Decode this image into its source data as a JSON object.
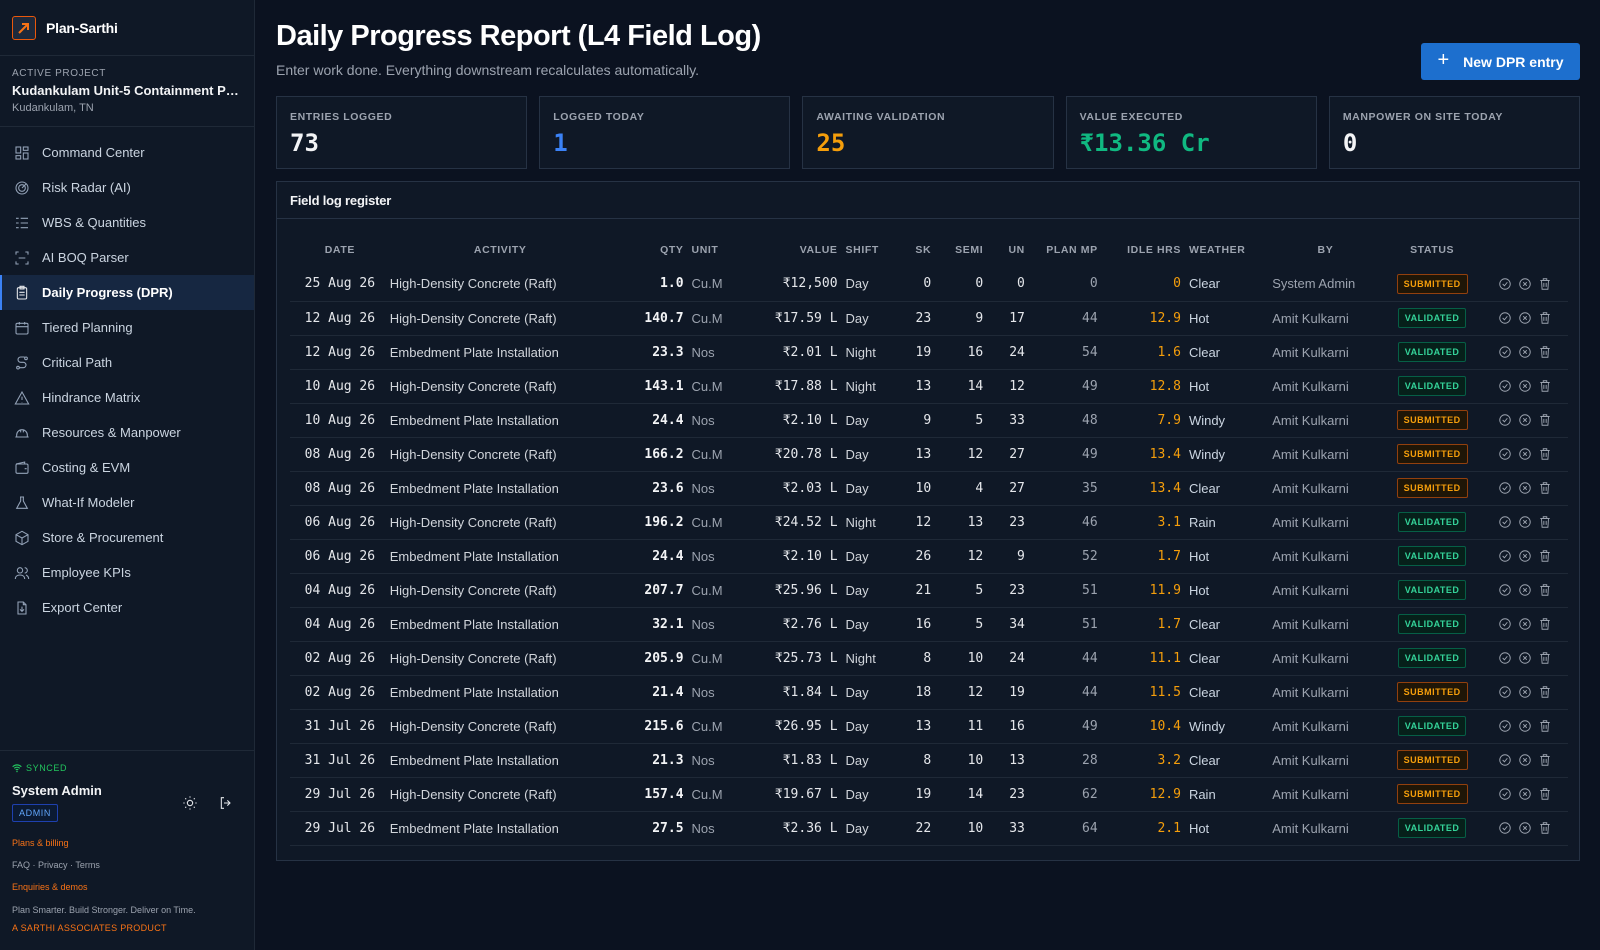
{
  "brand": {
    "name": "Plan-Sarthi"
  },
  "project": {
    "label": "ACTIVE PROJECT",
    "name": "Kudankulam Unit-5 Containment Pa...",
    "location": "Kudankulam, TN"
  },
  "nav": [
    {
      "label": "Command Center",
      "icon": "grid-icon"
    },
    {
      "label": "Risk Radar (AI)",
      "icon": "radar-icon"
    },
    {
      "label": "WBS & Quantities",
      "icon": "list-tree-icon"
    },
    {
      "label": "AI BOQ Parser",
      "icon": "scan-icon"
    },
    {
      "label": "Daily Progress (DPR)",
      "icon": "clipboard-icon",
      "active": true
    },
    {
      "label": "Tiered Planning",
      "icon": "calendar-icon"
    },
    {
      "label": "Critical Path",
      "icon": "route-icon"
    },
    {
      "label": "Hindrance Matrix",
      "icon": "warning-icon"
    },
    {
      "label": "Resources & Manpower",
      "icon": "hardhat-icon"
    },
    {
      "label": "Costing & EVM",
      "icon": "wallet-icon"
    },
    {
      "label": "What-If Modeler",
      "icon": "flask-icon"
    },
    {
      "label": "Store & Procurement",
      "icon": "package-icon"
    },
    {
      "label": "Employee KPIs",
      "icon": "users-icon"
    },
    {
      "label": "Export Center",
      "icon": "file-export-icon"
    }
  ],
  "footer": {
    "synced": "SYNCED",
    "user": "System Admin",
    "role": "ADMIN",
    "plans_link": "Plans & billing",
    "faq_links": "FAQ · Privacy · Terms",
    "enquiries_link": "Enquiries & demos",
    "tagline": "Plan Smarter. Build Stronger. Deliver on Time.",
    "product": "A SARTHI ASSOCIATES PRODUCT"
  },
  "header": {
    "title": "Daily Progress Report (L4 Field Log)",
    "subtitle": "Enter work done. Everything downstream recalculates automatically.",
    "new_button": "New DPR entry"
  },
  "stats": [
    {
      "label": "ENTRIES LOGGED",
      "value": "73",
      "color": "#f3f4f6"
    },
    {
      "label": "LOGGED TODAY",
      "value": "1",
      "color": "#3b82f6"
    },
    {
      "label": "AWAITING VALIDATION",
      "value": "25",
      "color": "#f59e0b"
    },
    {
      "label": "VALUE EXECUTED",
      "value": "₹13.36 Cr",
      "color": "#10b981"
    },
    {
      "label": "MANPOWER ON SITE TODAY",
      "value": "0",
      "color": "#f3f4f6"
    }
  ],
  "register": {
    "title": "Field log register",
    "columns": [
      "DATE",
      "ACTIVITY",
      "QTY",
      "UNIT",
      "VALUE",
      "SHIFT",
      "SK",
      "SEMI",
      "UN",
      "PLAN MP",
      "IDLE HRS",
      "WEATHER",
      "BY",
      "STATUS"
    ],
    "rows": [
      {
        "date": "25 Aug 26",
        "activity": "High-Density Concrete (Raft)",
        "qty": "1.0",
        "unit": "Cu.M",
        "value": "₹12,500",
        "shift": "Day",
        "sk": "0",
        "semi": "0",
        "un": "0",
        "plan": "0",
        "idle": "0",
        "weather": "Clear",
        "by": "System Admin",
        "status": "SUBMITTED"
      },
      {
        "date": "12 Aug 26",
        "activity": "High-Density Concrete (Raft)",
        "qty": "140.7",
        "unit": "Cu.M",
        "value": "₹17.59 L",
        "shift": "Day",
        "sk": "23",
        "semi": "9",
        "un": "17",
        "plan": "44",
        "idle": "12.9",
        "weather": "Hot",
        "by": "Amit Kulkarni",
        "status": "VALIDATED"
      },
      {
        "date": "12 Aug 26",
        "activity": "Embedment Plate Installation",
        "qty": "23.3",
        "unit": "Nos",
        "value": "₹2.01 L",
        "shift": "Night",
        "sk": "19",
        "semi": "16",
        "un": "24",
        "plan": "54",
        "idle": "1.6",
        "weather": "Clear",
        "by": "Amit Kulkarni",
        "status": "VALIDATED"
      },
      {
        "date": "10 Aug 26",
        "activity": "High-Density Concrete (Raft)",
        "qty": "143.1",
        "unit": "Cu.M",
        "value": "₹17.88 L",
        "shift": "Night",
        "sk": "13",
        "semi": "14",
        "un": "12",
        "plan": "49",
        "idle": "12.8",
        "weather": "Hot",
        "by": "Amit Kulkarni",
        "status": "VALIDATED"
      },
      {
        "date": "10 Aug 26",
        "activity": "Embedment Plate Installation",
        "qty": "24.4",
        "unit": "Nos",
        "value": "₹2.10 L",
        "shift": "Day",
        "sk": "9",
        "semi": "5",
        "un": "33",
        "plan": "48",
        "idle": "7.9",
        "weather": "Windy",
        "by": "Amit Kulkarni",
        "status": "SUBMITTED"
      },
      {
        "date": "08 Aug 26",
        "activity": "High-Density Concrete (Raft)",
        "qty": "166.2",
        "unit": "Cu.M",
        "value": "₹20.78 L",
        "shift": "Day",
        "sk": "13",
        "semi": "12",
        "un": "27",
        "plan": "49",
        "idle": "13.4",
        "weather": "Windy",
        "by": "Amit Kulkarni",
        "status": "SUBMITTED"
      },
      {
        "date": "08 Aug 26",
        "activity": "Embedment Plate Installation",
        "qty": "23.6",
        "unit": "Nos",
        "value": "₹2.03 L",
        "shift": "Day",
        "sk": "10",
        "semi": "4",
        "un": "27",
        "plan": "35",
        "idle": "13.4",
        "weather": "Clear",
        "by": "Amit Kulkarni",
        "status": "SUBMITTED"
      },
      {
        "date": "06 Aug 26",
        "activity": "High-Density Concrete (Raft)",
        "qty": "196.2",
        "unit": "Cu.M",
        "value": "₹24.52 L",
        "shift": "Night",
        "sk": "12",
        "semi": "13",
        "un": "23",
        "plan": "46",
        "idle": "3.1",
        "weather": "Rain",
        "by": "Amit Kulkarni",
        "status": "VALIDATED"
      },
      {
        "date": "06 Aug 26",
        "activity": "Embedment Plate Installation",
        "qty": "24.4",
        "unit": "Nos",
        "value": "₹2.10 L",
        "shift": "Day",
        "sk": "26",
        "semi": "12",
        "un": "9",
        "plan": "52",
        "idle": "1.7",
        "weather": "Hot",
        "by": "Amit Kulkarni",
        "status": "VALIDATED"
      },
      {
        "date": "04 Aug 26",
        "activity": "High-Density Concrete (Raft)",
        "qty": "207.7",
        "unit": "Cu.M",
        "value": "₹25.96 L",
        "shift": "Day",
        "sk": "21",
        "semi": "5",
        "un": "23",
        "plan": "51",
        "idle": "11.9",
        "weather": "Hot",
        "by": "Amit Kulkarni",
        "status": "VALIDATED"
      },
      {
        "date": "04 Aug 26",
        "activity": "Embedment Plate Installation",
        "qty": "32.1",
        "unit": "Nos",
        "value": "₹2.76 L",
        "shift": "Day",
        "sk": "16",
        "semi": "5",
        "un": "34",
        "plan": "51",
        "idle": "1.7",
        "weather": "Clear",
        "by": "Amit Kulkarni",
        "status": "VALIDATED"
      },
      {
        "date": "02 Aug 26",
        "activity": "High-Density Concrete (Raft)",
        "qty": "205.9",
        "unit": "Cu.M",
        "value": "₹25.73 L",
        "shift": "Night",
        "sk": "8",
        "semi": "10",
        "un": "24",
        "plan": "44",
        "idle": "11.1",
        "weather": "Clear",
        "by": "Amit Kulkarni",
        "status": "VALIDATED"
      },
      {
        "date": "02 Aug 26",
        "activity": "Embedment Plate Installation",
        "qty": "21.4",
        "unit": "Nos",
        "value": "₹1.84 L",
        "shift": "Day",
        "sk": "18",
        "semi": "12",
        "un": "19",
        "plan": "44",
        "idle": "11.5",
        "weather": "Clear",
        "by": "Amit Kulkarni",
        "status": "SUBMITTED"
      },
      {
        "date": "31 Jul 26",
        "activity": "High-Density Concrete (Raft)",
        "qty": "215.6",
        "unit": "Cu.M",
        "value": "₹26.95 L",
        "shift": "Day",
        "sk": "13",
        "semi": "11",
        "un": "16",
        "plan": "49",
        "idle": "10.4",
        "weather": "Windy",
        "by": "Amit Kulkarni",
        "status": "VALIDATED"
      },
      {
        "date": "31 Jul 26",
        "activity": "Embedment Plate Installation",
        "qty": "21.3",
        "unit": "Nos",
        "value": "₹1.83 L",
        "shift": "Day",
        "sk": "8",
        "semi": "10",
        "un": "13",
        "plan": "28",
        "idle": "3.2",
        "weather": "Clear",
        "by": "Amit Kulkarni",
        "status": "SUBMITTED"
      },
      {
        "date": "29 Jul 26",
        "activity": "High-Density Concrete (Raft)",
        "qty": "157.4",
        "unit": "Cu.M",
        "value": "₹19.67 L",
        "shift": "Day",
        "sk": "19",
        "semi": "14",
        "un": "23",
        "plan": "62",
        "idle": "12.9",
        "weather": "Rain",
        "by": "Amit Kulkarni",
        "status": "SUBMITTED"
      },
      {
        "date": "29 Jul 26",
        "activity": "Embedment Plate Installation",
        "qty": "27.5",
        "unit": "Nos",
        "value": "₹2.36 L",
        "shift": "Day",
        "sk": "22",
        "semi": "10",
        "un": "33",
        "plan": "64",
        "idle": "2.1",
        "weather": "Hot",
        "by": "Amit Kulkarni",
        "status": "VALIDATED"
      }
    ]
  }
}
